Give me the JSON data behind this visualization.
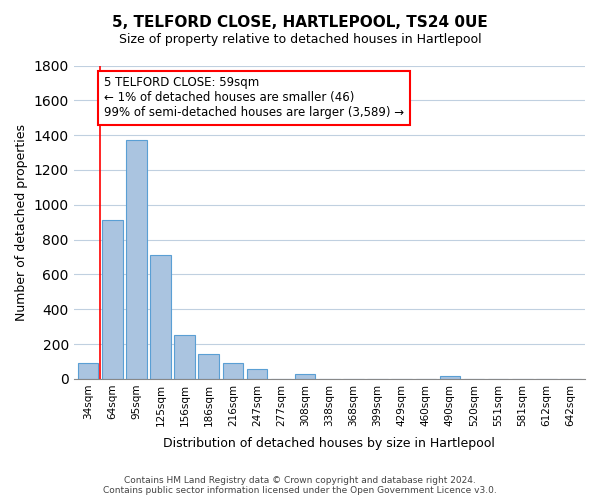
{
  "title": "5, TELFORD CLOSE, HARTLEPOOL, TS24 0UE",
  "subtitle": "Size of property relative to detached houses in Hartlepool",
  "xlabel": "Distribution of detached houses by size in Hartlepool",
  "ylabel": "Number of detached properties",
  "categories": [
    "34sqm",
    "64sqm",
    "95sqm",
    "125sqm",
    "156sqm",
    "186sqm",
    "216sqm",
    "247sqm",
    "277sqm",
    "308sqm",
    "338sqm",
    "368sqm",
    "399sqm",
    "429sqm",
    "460sqm",
    "490sqm",
    "520sqm",
    "551sqm",
    "581sqm",
    "612sqm",
    "642sqm"
  ],
  "values": [
    90,
    910,
    1370,
    710,
    250,
    145,
    90,
    55,
    0,
    30,
    0,
    0,
    0,
    0,
    0,
    15,
    0,
    0,
    0,
    0,
    0
  ],
  "bar_color": "#aac4e0",
  "bar_edge_color": "#5a9fd4",
  "annotation_text_line1": "5 TELFORD CLOSE: 59sqm",
  "annotation_text_line2": "← 1% of detached houses are smaller (46)",
  "annotation_text_line3": "99% of semi-detached houses are larger (3,589) →",
  "red_line_x": 0.5,
  "ylim": [
    0,
    1800
  ],
  "yticks": [
    0,
    200,
    400,
    600,
    800,
    1000,
    1200,
    1400,
    1600,
    1800
  ],
  "footer_line1": "Contains HM Land Registry data © Crown copyright and database right 2024.",
  "footer_line2": "Contains public sector information licensed under the Open Government Licence v3.0.",
  "background_color": "#ffffff",
  "grid_color": "#c0d0e0"
}
